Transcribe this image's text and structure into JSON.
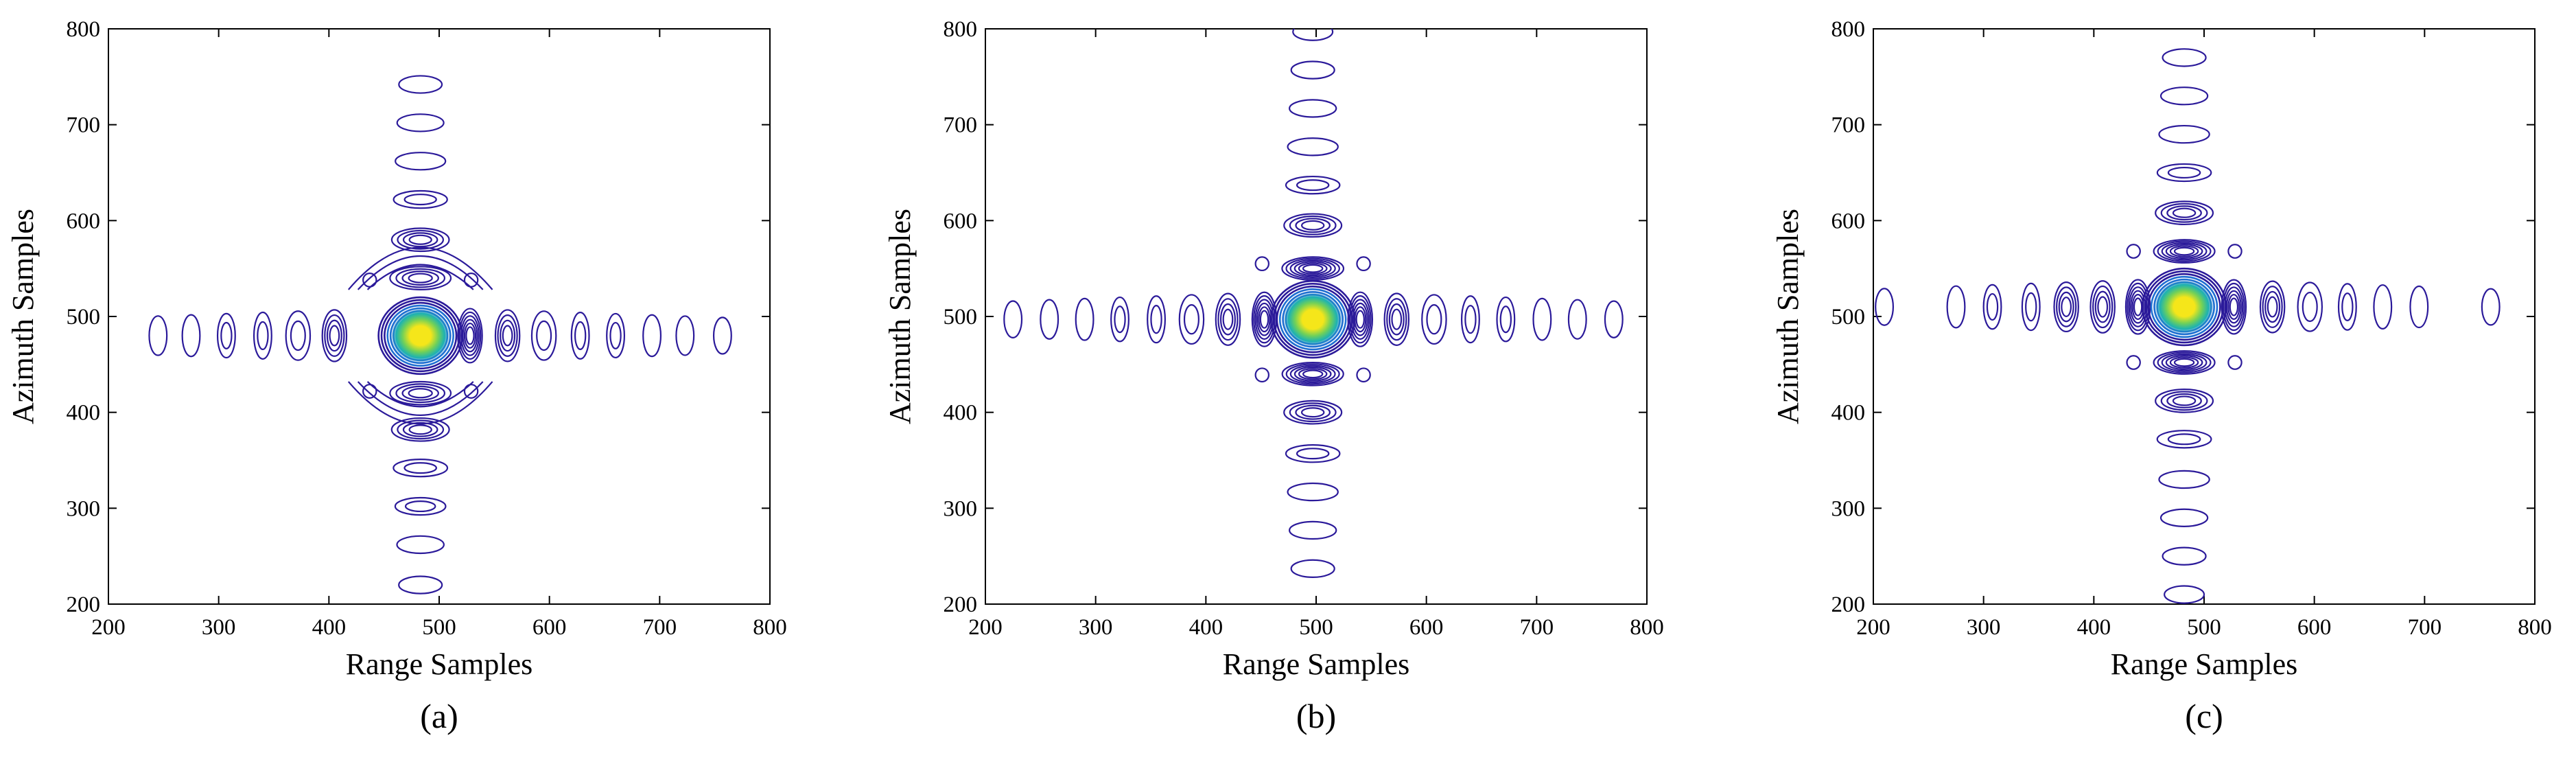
{
  "chart_data": [
    {
      "type": "contour",
      "caption": "(a)",
      "xlabel": "Range Samples",
      "ylabel": "Azimuth Samples",
      "xlim": [
        200,
        800
      ],
      "ylim": [
        200,
        800
      ],
      "xticks": [
        "200",
        "300",
        "400",
        "500",
        "600",
        "700",
        "800"
      ],
      "yticks": [
        "200",
        "300",
        "400",
        "500",
        "600",
        "700",
        "800"
      ],
      "peak": [
        483,
        480
      ],
      "range_lobes": [
        245,
        275,
        307,
        340,
        372,
        405,
        528,
        562,
        595,
        628,
        660,
        693,
        723,
        757
      ],
      "azimuth_lobes": [
        220,
        262,
        302,
        342,
        382,
        420,
        540,
        580,
        622,
        662,
        702,
        742
      ],
      "asymmetric_center": true
    },
    {
      "type": "contour",
      "caption": "(b)",
      "xlabel": "Range Samples",
      "ylabel": "Azimuth Samples",
      "xlim": [
        200,
        800
      ],
      "ylim": [
        200,
        800
      ],
      "xticks": [
        "200",
        "300",
        "400",
        "500",
        "600",
        "700",
        "800"
      ],
      "yticks": [
        "200",
        "300",
        "400",
        "500",
        "600",
        "700",
        "800"
      ],
      "peak": [
        497,
        497
      ],
      "range_lobes": [
        225,
        258,
        290,
        322,
        355,
        387,
        420,
        453,
        540,
        573,
        607,
        640,
        672,
        705,
        737,
        770
      ],
      "azimuth_lobes": [
        237,
        277,
        317,
        357,
        400,
        440,
        550,
        595,
        637,
        677,
        717,
        757,
        797
      ],
      "asymmetric_center": false
    },
    {
      "type": "contour",
      "caption": "(c)",
      "xlabel": "Range Samples",
      "ylabel": "Azimuth Samples",
      "xlim": [
        200,
        800
      ],
      "ylim": [
        200,
        800
      ],
      "xticks": [
        "200",
        "300",
        "400",
        "500",
        "600",
        "700",
        "800"
      ],
      "yticks": [
        "200",
        "300",
        "400",
        "500",
        "600",
        "700",
        "800"
      ],
      "peak": [
        482,
        510
      ],
      "range_lobes": [
        210,
        275,
        308,
        343,
        375,
        408,
        440,
        527,
        562,
        596,
        630,
        662,
        695,
        760
      ],
      "azimuth_lobes": [
        210,
        250,
        290,
        330,
        372,
        412,
        452,
        568,
        608,
        650,
        690,
        730,
        770
      ],
      "asymmetric_center": false
    }
  ],
  "colors": {
    "outer": "#2b1a9a",
    "mid1": "#1f6fd1",
    "mid2": "#1fb3b0",
    "mid3": "#6fd05a",
    "core": "#f5e61a"
  }
}
